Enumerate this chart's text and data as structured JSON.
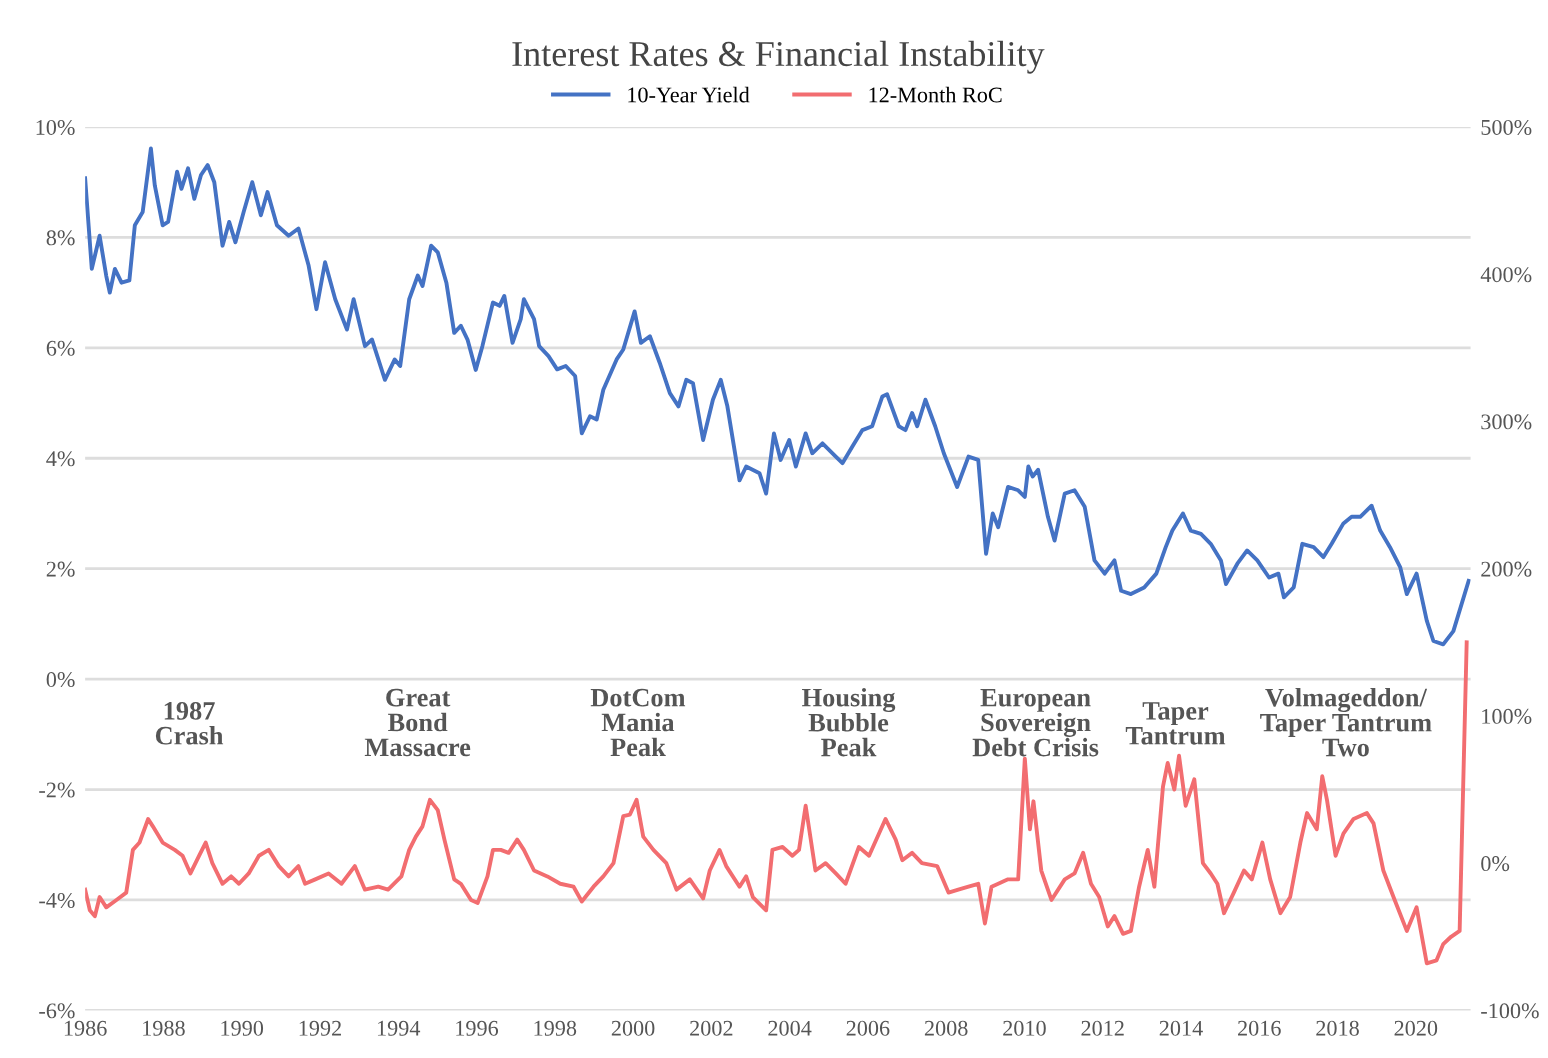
{
  "chart_data": {
    "type": "line",
    "title": "Interest Rates & Financial Instability",
    "legend": "top",
    "grid": "y",
    "line_style": "solid",
    "xlim": [
      1986,
      2021.4
    ],
    "xticks": [
      1986,
      1988,
      1990,
      1992,
      1994,
      1996,
      1998,
      2000,
      2002,
      2004,
      2006,
      2008,
      2010,
      2012,
      2014,
      2016,
      2018,
      2020
    ],
    "ylim": [
      -6,
      10
    ],
    "yticks": [
      {
        "value": -6,
        "label": "-6%"
      },
      {
        "value": -4,
        "label": "-4%"
      },
      {
        "value": -2,
        "label": "-2%"
      },
      {
        "value": 0,
        "label": "0%"
      },
      {
        "value": 2,
        "label": "2%"
      },
      {
        "value": 4,
        "label": "4%"
      },
      {
        "value": 6,
        "label": "6%"
      },
      {
        "value": 8,
        "label": "8%"
      },
      {
        "value": 10,
        "label": "10%"
      }
    ],
    "y2lim": [
      -100,
      500
    ],
    "y2ticks": [
      {
        "value": -100,
        "label": "-100%"
      },
      {
        "value": 0,
        "label": "0%"
      },
      {
        "value": 100,
        "label": "100%"
      },
      {
        "value": 200,
        "label": "200%"
      },
      {
        "value": 300,
        "label": "300%"
      },
      {
        "value": 400,
        "label": "400%"
      },
      {
        "value": 500,
        "label": "500%"
      }
    ],
    "series": [
      {
        "name": "10-Year Yield",
        "color": "#4472c4",
        "axis": "y",
        "x": [
          1986.0,
          1986.17,
          1986.37,
          1986.54,
          1986.63,
          1986.76,
          1986.93,
          1987.13,
          1987.27,
          1987.47,
          1987.68,
          1987.78,
          1987.98,
          1988.12,
          1988.35,
          1988.46,
          1988.63,
          1988.79,
          1988.96,
          1989.13,
          1989.3,
          1989.51,
          1989.68,
          1989.84,
          1990.05,
          1990.27,
          1990.49,
          1990.66,
          1990.9,
          1991.2,
          1991.45,
          1991.71,
          1991.91,
          1992.13,
          1992.39,
          1992.69,
          1992.86,
          1993.15,
          1993.33,
          1993.66,
          1993.91,
          1994.05,
          1994.28,
          1994.5,
          1994.62,
          1994.84,
          1995.01,
          1995.23,
          1995.43,
          1995.6,
          1995.77,
          1995.98,
          1996.15,
          1996.42,
          1996.59,
          1996.71,
          1996.92,
          1997.13,
          1997.21,
          1997.47,
          1997.6,
          1997.84,
          1998.06,
          1998.28,
          1998.52,
          1998.69,
          1998.9,
          1999.07,
          1999.24,
          1999.58,
          1999.75,
          2000.04,
          2000.2,
          2000.43,
          2000.68,
          2000.94,
          2001.16,
          2001.36,
          2001.53,
          2001.79,
          2002.04,
          2002.24,
          2002.41,
          2002.72,
          2002.89,
          2003.23,
          2003.4,
          2003.6,
          2003.77,
          2003.99,
          2004.16,
          2004.41,
          2004.58,
          2004.84,
          2005.18,
          2005.35,
          2005.6,
          2005.86,
          2006.11,
          2006.37,
          2006.49,
          2006.79,
          2006.96,
          2007.13,
          2007.26,
          2007.47,
          2007.72,
          2007.94,
          2008.28,
          2008.57,
          2008.82,
          2009.02,
          2009.19,
          2009.33,
          2009.58,
          2009.84,
          2010.01,
          2010.1,
          2010.21,
          2010.35,
          2010.6,
          2010.77,
          2011.03,
          2011.28,
          2011.54,
          2011.79,
          2012.05,
          2012.3,
          2012.47,
          2012.72,
          2013.06,
          2013.37,
          2013.61,
          2013.78,
          2014.05,
          2014.25,
          2014.51,
          2014.76,
          2015.02,
          2015.15,
          2015.44,
          2015.69,
          2015.95,
          2016.25,
          2016.49,
          2016.63,
          2016.88,
          2017.1,
          2017.39,
          2017.64,
          2017.85,
          2018.15,
          2018.36,
          2018.58,
          2018.87,
          2019.09,
          2019.34,
          2019.6,
          2019.77,
          2020.02,
          2020.28,
          2020.45,
          2020.7,
          2020.96,
          2021.35
        ],
        "values": [
          9.07,
          7.43,
          8.03,
          7.3,
          7.0,
          7.43,
          7.18,
          7.22,
          8.22,
          8.46,
          9.61,
          8.94,
          8.22,
          8.28,
          9.19,
          8.88,
          9.25,
          8.7,
          9.13,
          9.31,
          9.0,
          7.85,
          8.28,
          7.91,
          8.46,
          9.0,
          8.4,
          8.82,
          8.22,
          8.03,
          8.16,
          7.49,
          6.7,
          7.55,
          6.88,
          6.33,
          6.88,
          6.03,
          6.15,
          5.42,
          5.79,
          5.67,
          6.88,
          7.31,
          7.12,
          7.85,
          7.73,
          7.18,
          6.27,
          6.4,
          6.15,
          5.6,
          6.03,
          6.82,
          6.76,
          6.94,
          6.09,
          6.52,
          6.88,
          6.52,
          6.03,
          5.85,
          5.61,
          5.67,
          5.49,
          4.45,
          4.76,
          4.7,
          5.24,
          5.79,
          5.97,
          6.66,
          6.09,
          6.21,
          5.73,
          5.18,
          4.94,
          5.42,
          5.36,
          4.33,
          5.06,
          5.42,
          4.94,
          3.6,
          3.85,
          3.73,
          3.36,
          4.45,
          3.97,
          4.33,
          3.85,
          4.45,
          4.09,
          4.27,
          4.03,
          3.91,
          4.21,
          4.51,
          4.58,
          5.12,
          5.16,
          4.58,
          4.51,
          4.82,
          4.58,
          5.06,
          4.58,
          4.09,
          3.48,
          4.03,
          3.97,
          2.27,
          3.0,
          2.75,
          3.48,
          3.42,
          3.3,
          3.85,
          3.67,
          3.79,
          2.94,
          2.51,
          3.36,
          3.42,
          3.12,
          2.15,
          1.91,
          2.15,
          1.6,
          1.54,
          1.66,
          1.91,
          2.39,
          2.69,
          3.0,
          2.69,
          2.63,
          2.45,
          2.15,
          1.72,
          2.09,
          2.33,
          2.15,
          1.84,
          1.91,
          1.48,
          1.66,
          2.45,
          2.39,
          2.21,
          2.45,
          2.82,
          2.94,
          2.94,
          3.14,
          2.69,
          2.39,
          2.03,
          1.54,
          1.91,
          1.06,
          0.69,
          0.63,
          0.87,
          1.78
        ]
      },
      {
        "name": "12-Month RoC",
        "color": "#f26d70",
        "axis": "y2",
        "x": [
          1986.0,
          1986.12,
          1986.25,
          1986.37,
          1986.54,
          1986.8,
          1987.05,
          1987.22,
          1987.39,
          1987.61,
          1987.73,
          1987.98,
          1988.29,
          1988.49,
          1988.69,
          1988.91,
          1989.08,
          1989.25,
          1989.51,
          1989.73,
          1989.93,
          1990.18,
          1990.44,
          1990.69,
          1990.95,
          1991.2,
          1991.45,
          1991.62,
          1991.88,
          1992.22,
          1992.55,
          1992.89,
          1993.15,
          1993.49,
          1993.74,
          1994.08,
          1994.28,
          1994.45,
          1994.62,
          1994.81,
          1995.01,
          1995.18,
          1995.43,
          1995.6,
          1995.86,
          1996.03,
          1996.28,
          1996.42,
          1996.62,
          1996.82,
          1997.04,
          1997.21,
          1997.47,
          1997.81,
          1998.14,
          1998.48,
          1998.69,
          1998.99,
          1999.24,
          1999.5,
          1999.75,
          1999.92,
          2000.09,
          2000.26,
          2000.52,
          2000.85,
          2001.11,
          2001.45,
          2001.79,
          2001.96,
          2002.21,
          2002.38,
          2002.72,
          2002.89,
          2003.06,
          2003.4,
          2003.56,
          2003.82,
          2004.07,
          2004.24,
          2004.41,
          2004.66,
          2004.92,
          2005.18,
          2005.43,
          2005.77,
          2006.03,
          2006.45,
          2006.71,
          2006.88,
          2007.13,
          2007.38,
          2007.77,
          2008.06,
          2008.31,
          2008.57,
          2008.82,
          2008.99,
          2009.16,
          2009.33,
          2009.58,
          2009.84,
          2010.01,
          2010.14,
          2010.23,
          2010.43,
          2010.69,
          2011.03,
          2011.28,
          2011.5,
          2011.7,
          2011.91,
          2012.13,
          2012.3,
          2012.52,
          2012.72,
          2012.93,
          2013.15,
          2013.32,
          2013.54,
          2013.66,
          2013.83,
          2013.95,
          2014.12,
          2014.34,
          2014.56,
          2014.76,
          2014.93,
          2015.1,
          2015.35,
          2015.61,
          2015.81,
          2016.08,
          2016.28,
          2016.54,
          2016.79,
          2017.05,
          2017.22,
          2017.47,
          2017.61,
          2017.73,
          2017.95,
          2018.15,
          2018.41,
          2018.75,
          2018.92,
          2019.17,
          2019.43,
          2019.77,
          2020.02,
          2020.28,
          2020.53,
          2020.7,
          2020.9,
          2021.12,
          2021.3
        ],
        "values": [
          -18,
          -32,
          -36,
          -23,
          -30,
          -25,
          -20,
          9,
          14,
          30,
          25,
          14,
          9,
          5,
          -7,
          5,
          14,
          0,
          -14,
          -9,
          -14,
          -7,
          5,
          9,
          -2,
          -9,
          -2,
          -14,
          -11,
          -7,
          -14,
          -2,
          -18,
          -16,
          -18,
          -9,
          9,
          18,
          25,
          43,
          36,
          16,
          -11,
          -14,
          -25,
          -27,
          -9,
          9,
          9,
          7,
          16,
          9,
          -5,
          -9,
          -14,
          -16,
          -26,
          -16,
          -9,
          0,
          32,
          33,
          43,
          18,
          9,
          0,
          -18,
          -11,
          -24,
          -5,
          9,
          -2,
          -16,
          -9,
          -23,
          -32,
          9,
          11,
          5,
          9,
          39,
          -5,
          0,
          -7,
          -14,
          11,
          5,
          30,
          16,
          2,
          7,
          0,
          -2,
          -20,
          -18,
          -16,
          -14,
          -41,
          -16,
          -14,
          -11,
          -11,
          71,
          23,
          42,
          -5,
          -25,
          -11,
          -7,
          7,
          -14,
          -23,
          -43,
          -36,
          -48,
          -46,
          -16,
          9,
          -16,
          52,
          68,
          50,
          73,
          39,
          57,
          0,
          -7,
          -14,
          -34,
          -20,
          -5,
          -11,
          14,
          -11,
          -34,
          -23,
          14,
          34,
          23,
          59,
          43,
          5,
          20,
          30,
          34,
          27,
          -5,
          -23,
          -46,
          -30,
          -68,
          -66,
          -55,
          -50,
          -46,
          150
        ]
      }
    ],
    "annotations": [
      "1987\nCrash",
      "Great\nBond\nMassacre",
      "DotCom\nMania\nPeak",
      "Housing\nBubble\nPeak",
      "European\nSovereign\nDebt Crisis",
      "Taper\nTantrum",
      "Volmageddon/\nTaper Tantrum\nTwo"
    ]
  }
}
